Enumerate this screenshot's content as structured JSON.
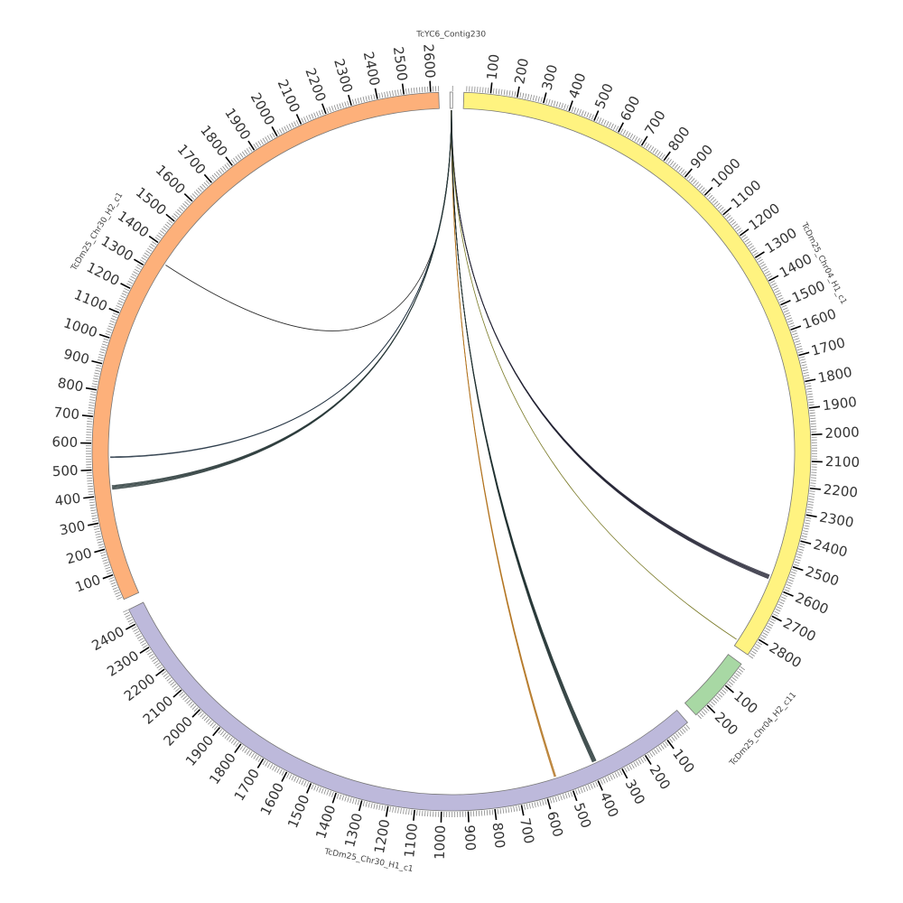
{
  "diagram": {
    "type": "circos",
    "tick_major_every": 100,
    "tick_minor_every": 10,
    "segments": [
      {
        "name": "TcYC6_Contig230",
        "length": 10,
        "color": "#FFFFFF"
      },
      {
        "name": "TcDm25_Chr04_H1_c1",
        "length": 2870,
        "color": "#FFF380"
      },
      {
        "name": "TcDm25_Chr04_H2_c11",
        "length": 255,
        "color": "#A8D8A4"
      },
      {
        "name": "TcDm25_Chr30_H1_c1",
        "length": 2460,
        "color": "#BDB9DB"
      },
      {
        "name": "TcDm25_Chr30_H2_c1",
        "length": 2630,
        "color": "#FDB07A"
      }
    ],
    "links": [
      {
        "from": 0,
        "from_pos": 5,
        "to": 4,
        "to_pos": 1345,
        "color": "#111111",
        "count": 1
      },
      {
        "from": 0,
        "from_pos": 5,
        "to": 4,
        "to_pos": 545,
        "color": "#1a2a3a",
        "count": 2
      },
      {
        "from": 0,
        "from_pos": 5,
        "to": 4,
        "to_pos": 420,
        "color": "#2a3a3a",
        "count": 6
      },
      {
        "from": 0,
        "from_pos": 5,
        "to": 1,
        "to_pos": 2560,
        "color": "#222233",
        "count": 6
      },
      {
        "from": 0,
        "from_pos": 5,
        "to": 1,
        "to_pos": 2845,
        "color": "#6b6b10",
        "count": 1
      },
      {
        "from": 0,
        "from_pos": 5,
        "to": 3,
        "to_pos": 545,
        "color": "#b0701a",
        "count": 3
      },
      {
        "from": 0,
        "from_pos": 5,
        "to": 3,
        "to_pos": 375,
        "color": "#1f3030",
        "count": 6
      }
    ]
  }
}
